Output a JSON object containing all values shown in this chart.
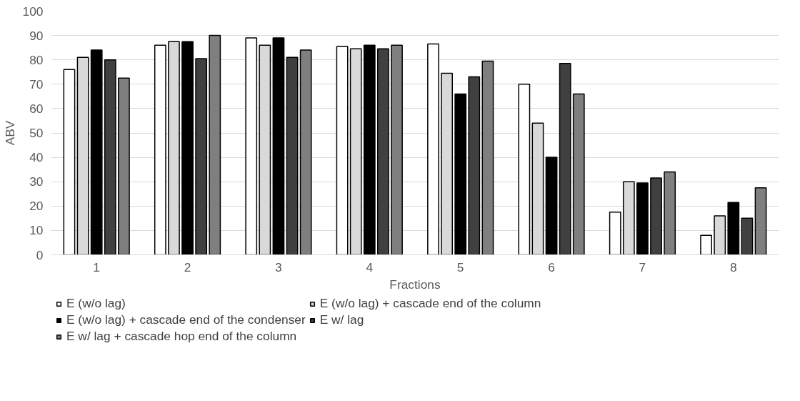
{
  "chart_data": {
    "type": "bar",
    "xlabel": "Fractions",
    "ylabel": "ABV",
    "categories": [
      "1",
      "2",
      "3",
      "4",
      "5",
      "6",
      "7",
      "8"
    ],
    "series": [
      {
        "name": "E (w/o lag)",
        "color": "#ffffff",
        "values": [
          76,
          86,
          89,
          85.5,
          86.5,
          70,
          17.5,
          8
        ]
      },
      {
        "name": "E (w/o lag) + cascade end of the column",
        "color": "#d9d9d9",
        "values": [
          81,
          87.5,
          86,
          84.5,
          74.5,
          54,
          30,
          16
        ]
      },
      {
        "name": "E (w/o lag) + cascade end of the condenser",
        "color": "#000000",
        "values": [
          84,
          87.5,
          89,
          86,
          66,
          40,
          29.5,
          21.5
        ]
      },
      {
        "name": "E w/ lag",
        "color": "#404040",
        "values": [
          80,
          80.5,
          81,
          84.5,
          73,
          78.5,
          31.5,
          15
        ]
      },
      {
        "name": "E w/ lag + cascade hop end of the column",
        "color": "#7f7f7f",
        "values": [
          72.5,
          90,
          84,
          86,
          79.5,
          66,
          34,
          27.5
        ]
      }
    ],
    "ylim": [
      0,
      100
    ],
    "yticks": [
      0,
      10,
      20,
      30,
      40,
      50,
      60,
      70,
      80,
      90,
      100
    ],
    "grid": "y",
    "legend": "bottom"
  }
}
